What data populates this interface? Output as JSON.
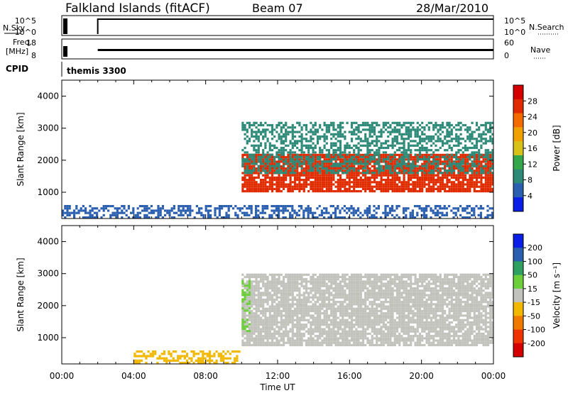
{
  "header": {
    "station": "Falkland Islands (fitACF)",
    "beam": "Beam 07",
    "date": "28/Mar/2010"
  },
  "strip_panels": {
    "nsky_label": "N.Sky",
    "nsky_ticks": [
      "10^5",
      "10^0"
    ],
    "nsearch_label": "N.Search",
    "nsearch_ticks": [
      "10^5",
      "10^0"
    ],
    "freq_label": "Freq.",
    "freq_unit": "[MHz]",
    "freq_ticks": [
      "18",
      "8"
    ],
    "nave_label": "Nave",
    "nave_ticks": [
      "60",
      "0"
    ],
    "cpid_label": "CPID",
    "cpid_value": "themis 3300"
  },
  "colors": {
    "power_scale": [
      "#0a1ee6",
      "#2a5fb0",
      "#2e8a78",
      "#33a84a",
      "#d8c21a",
      "#f0a000",
      "#f26a00",
      "#e02b00",
      "#d40000"
    ],
    "velocity_scale": [
      "#d40000",
      "#ee3300",
      "#f07a00",
      "#f2b800",
      "#c2c2bd",
      "#6ccf3a",
      "#2ea060",
      "#2a5fb0",
      "#0a1ee6"
    ],
    "ground_scatter": "#c2c2bd"
  },
  "chart_data": [
    {
      "type": "heatmap",
      "xlabel": "Time UT",
      "ylabel": "Slant Range [km]",
      "x_ticks": [
        "00:00",
        "04:00",
        "08:00",
        "12:00",
        "16:00",
        "20:00",
        "00:00"
      ],
      "x_range_hours": [
        0,
        24
      ],
      "y_ticks": [
        1000,
        2000,
        3000,
        4000
      ],
      "ylim": [
        180,
        4500
      ],
      "colorbar": {
        "label": "Power [dB]",
        "ticks": [
          4,
          8,
          12,
          16,
          20,
          24,
          28
        ],
        "range": [
          0,
          32
        ]
      },
      "features": [
        {
          "time_start": "10:00",
          "time_end": "24:00",
          "range_km": [
            1000,
            2200
          ],
          "power_db": 28,
          "note": "strong backscatter band"
        },
        {
          "time_start": "10:00",
          "time_end": "24:00",
          "range_km": [
            1600,
            3200
          ],
          "power_db": 8
        },
        {
          "time_start": "00:00",
          "time_end": "24:00",
          "range_km": [
            200,
            600
          ],
          "power_db": 4
        }
      ]
    },
    {
      "type": "heatmap",
      "xlabel": "Time UT",
      "ylabel": "Slant Range [km]",
      "x_ticks": [
        "00:00",
        "04:00",
        "08:00",
        "12:00",
        "16:00",
        "20:00",
        "00:00"
      ],
      "x_range_hours": [
        0,
        24
      ],
      "y_ticks": [
        1000,
        2000,
        3000,
        4000
      ],
      "ylim": [
        180,
        4500
      ],
      "colorbar": {
        "label": "Velocity [m s⁻¹]",
        "ticks": [
          200,
          100,
          50,
          15,
          -15,
          -50,
          -100,
          -200
        ],
        "range": [
          -250,
          250
        ]
      },
      "features": [
        {
          "time_start": "10:00",
          "time_end": "24:00",
          "range_km": [
            800,
            3000
          ],
          "velocity": 0,
          "note": "ground scatter (grey)"
        },
        {
          "time_start": "04:00",
          "time_end": "10:00",
          "range_km": [
            200,
            600
          ],
          "velocity": -60
        },
        {
          "time_start": "10:00",
          "time_end": "10:30",
          "range_km": [
            1200,
            2800
          ],
          "velocity": 60
        }
      ]
    }
  ]
}
